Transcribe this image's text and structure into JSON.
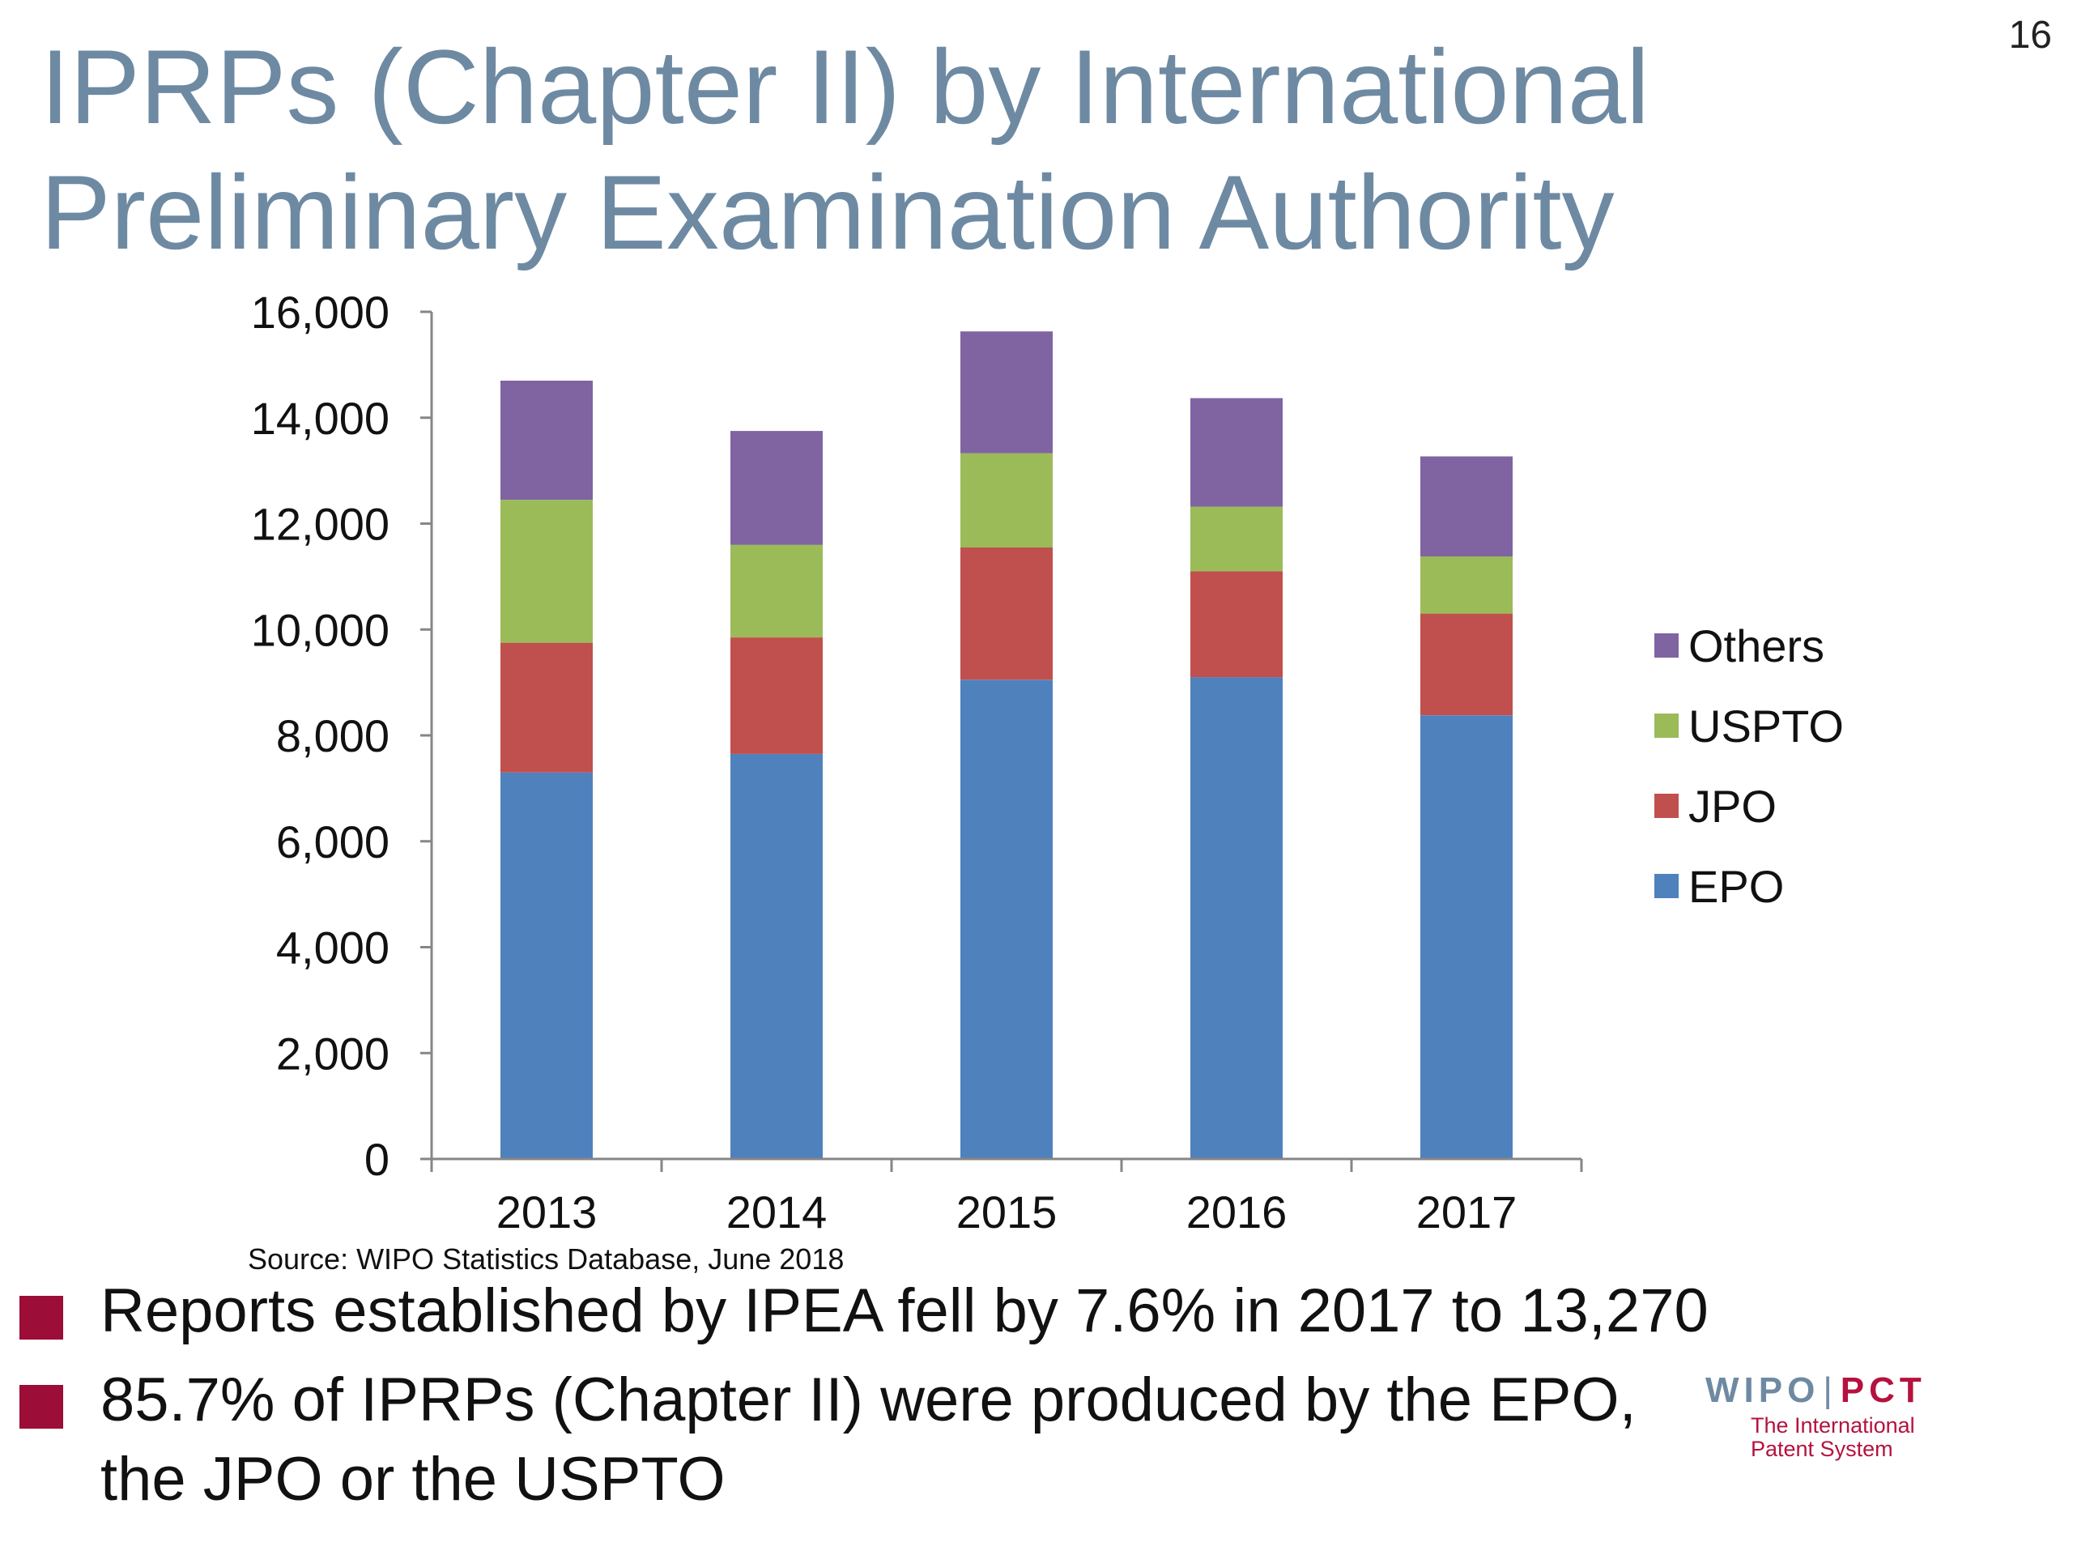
{
  "slide_number": "16",
  "title_lines": [
    "IPRPs (Chapter II) by International",
    "Preliminary Examination Authority"
  ],
  "source_note": "Source: WIPO Statistics Database, June  2018",
  "bullets": [
    {
      "text_lines": [
        "Reports established by IPEA fell by 7.6% in 2017 to 13,270"
      ]
    },
    {
      "text_lines": [
        "85.7% of IPRPs (Chapter II) were produced by the EPO,",
        "the JPO or the USPTO"
      ]
    }
  ],
  "logo": {
    "brand_left": "WIPO",
    "separator": "|",
    "brand_right": "PCT",
    "tagline_lines": [
      "The International",
      "Patent System"
    ]
  },
  "chart_data": {
    "type": "bar",
    "stacked": true,
    "categories": [
      "2013",
      "2014",
      "2015",
      "2016",
      "2017"
    ],
    "series": [
      {
        "name": "EPO",
        "color": "#4f81bd",
        "values": [
          7300,
          7650,
          9050,
          9100,
          8380
        ]
      },
      {
        "name": "JPO",
        "color": "#c0504d",
        "values": [
          2450,
          2200,
          2500,
          2000,
          1920
        ]
      },
      {
        "name": "USPTO",
        "color": "#9bbb59",
        "values": [
          2700,
          1750,
          1780,
          1220,
          1080
        ]
      },
      {
        "name": "Others",
        "color": "#8064a2",
        "values": [
          2250,
          2150,
          2300,
          2050,
          1890
        ]
      }
    ],
    "ylim": [
      0,
      16000
    ],
    "yticks": [
      0,
      2000,
      4000,
      6000,
      8000,
      10000,
      12000,
      14000,
      16000
    ],
    "ytick_labels": [
      "0",
      "2,000",
      "4,000",
      "6,000",
      "8,000",
      "10,000",
      "12,000",
      "14,000",
      "16,000"
    ],
    "legend_position": "right",
    "legend_order": [
      "Others",
      "USPTO",
      "JPO",
      "EPO"
    ],
    "grid": false
  }
}
